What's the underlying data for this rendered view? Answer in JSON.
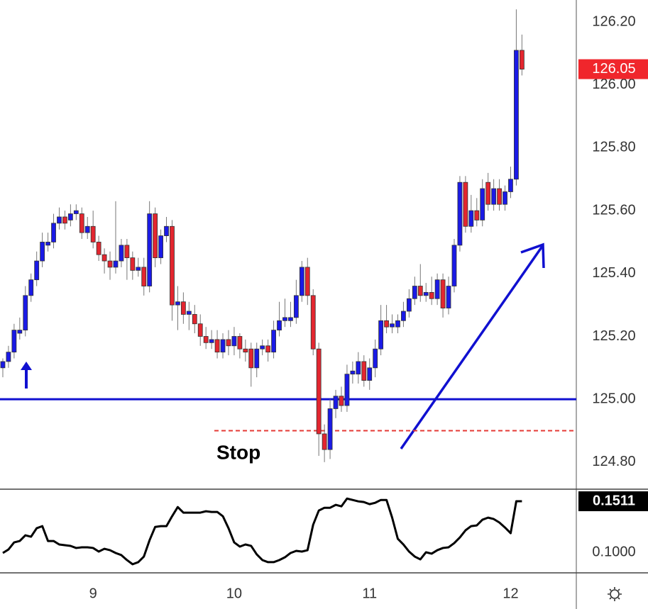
{
  "chart_data": [
    {
      "type": "candlestick",
      "categories": [
        null,
        null,
        null,
        null,
        null,
        null,
        null,
        null,
        null,
        null,
        null,
        null,
        null,
        null,
        null,
        null,
        "9",
        null,
        null,
        null,
        null,
        null,
        null,
        null,
        null,
        null,
        null,
        null,
        null,
        null,
        null,
        null,
        null,
        null,
        null,
        null,
        null,
        null,
        null,
        null,
        null,
        "10",
        null,
        null,
        null,
        null,
        null,
        null,
        null,
        null,
        null,
        null,
        null,
        null,
        null,
        null,
        null,
        null,
        null,
        null,
        null,
        null,
        null,
        null,
        null,
        "11",
        null,
        null,
        null,
        null,
        null,
        null,
        null,
        null,
        null,
        null,
        null,
        null,
        null,
        null,
        null,
        null,
        null,
        null,
        null,
        null,
        null,
        null,
        null,
        null,
        "12",
        null,
        null
      ],
      "open": [
        125.1,
        125.12,
        125.15,
        125.21,
        125.22,
        125.33,
        125.38,
        125.44,
        125.49,
        125.5,
        125.56,
        125.58,
        125.57,
        125.59,
        125.59,
        125.53,
        125.55,
        125.5,
        125.46,
        125.44,
        125.42,
        125.44,
        125.49,
        125.45,
        125.41,
        125.42,
        125.36,
        125.59,
        125.45,
        125.52,
        125.55,
        125.3,
        125.31,
        125.27,
        125.27,
        125.24,
        125.2,
        125.18,
        125.19,
        125.15,
        125.19,
        125.17,
        125.2,
        125.16,
        125.16,
        125.1,
        125.16,
        125.17,
        125.15,
        125.22,
        125.25,
        125.25,
        125.26,
        125.33,
        125.42,
        125.33,
        125.16,
        124.89,
        124.84,
        124.97,
        125.01,
        124.98,
        125.08,
        125.08,
        125.12,
        125.06,
        125.1,
        125.16,
        125.25,
        125.23,
        125.23,
        125.25,
        125.28,
        125.32,
        125.36,
        125.33,
        125.34,
        125.32,
        125.38,
        125.29,
        125.36,
        125.49,
        125.69,
        125.55,
        125.6,
        125.57,
        125.69,
        125.62,
        125.67,
        125.62,
        125.66,
        125.7,
        126.11
      ],
      "high": [
        125.13,
        125.17,
        125.24,
        125.26,
        125.36,
        125.4,
        125.47,
        125.53,
        125.53,
        125.59,
        125.61,
        125.6,
        125.62,
        125.62,
        125.61,
        125.58,
        125.6,
        125.52,
        125.48,
        125.47,
        125.63,
        125.51,
        125.51,
        125.47,
        125.45,
        125.45,
        125.63,
        125.61,
        125.54,
        125.58,
        125.57,
        125.36,
        125.34,
        125.31,
        125.3,
        125.27,
        125.23,
        125.22,
        125.22,
        125.21,
        125.22,
        125.23,
        125.21,
        125.19,
        125.18,
        125.18,
        125.19,
        125.19,
        125.25,
        125.31,
        125.32,
        125.31,
        125.38,
        125.44,
        125.45,
        125.35,
        125.18,
        124.92,
        125.0,
        125.03,
        125.04,
        125.11,
        125.12,
        125.15,
        125.14,
        125.13,
        125.19,
        125.3,
        125.3,
        125.27,
        125.27,
        125.31,
        125.35,
        125.39,
        125.43,
        125.37,
        125.39,
        125.4,
        125.4,
        125.39,
        125.51,
        125.71,
        125.71,
        125.65,
        125.64,
        125.7,
        125.72,
        125.7,
        125.7,
        125.68,
        125.74,
        126.24,
        126.16
      ],
      "low": [
        125.07,
        125.1,
        125.13,
        125.19,
        125.2,
        125.31,
        125.36,
        125.42,
        125.47,
        125.48,
        125.54,
        125.54,
        125.55,
        125.57,
        125.51,
        125.51,
        125.48,
        125.44,
        125.4,
        125.38,
        125.4,
        125.42,
        125.38,
        125.38,
        125.39,
        125.33,
        125.34,
        125.42,
        125.43,
        125.5,
        125.25,
        125.22,
        125.24,
        125.22,
        125.21,
        125.17,
        125.16,
        125.16,
        125.13,
        125.13,
        125.14,
        125.14,
        125.13,
        125.12,
        125.04,
        125.07,
        125.14,
        125.12,
        125.13,
        125.2,
        125.23,
        125.23,
        125.24,
        125.31,
        125.3,
        125.14,
        124.82,
        124.8,
        124.81,
        124.94,
        124.96,
        124.96,
        125.05,
        125.05,
        125.04,
        125.03,
        125.07,
        125.14,
        125.21,
        125.21,
        125.21,
        125.23,
        125.26,
        125.3,
        125.31,
        125.31,
        125.3,
        125.3,
        125.26,
        125.27,
        125.34,
        125.47,
        125.53,
        125.53,
        125.55,
        125.55,
        125.6,
        125.6,
        125.6,
        125.6,
        125.64,
        125.68,
        126.03
      ],
      "close": [
        125.12,
        125.15,
        125.22,
        125.22,
        125.33,
        125.38,
        125.44,
        125.5,
        125.5,
        125.56,
        125.58,
        125.56,
        125.59,
        125.6,
        125.53,
        125.55,
        125.5,
        125.46,
        125.44,
        125.42,
        125.44,
        125.49,
        125.45,
        125.41,
        125.42,
        125.36,
        125.59,
        125.45,
        125.52,
        125.55,
        125.3,
        125.31,
        125.27,
        125.28,
        125.24,
        125.2,
        125.18,
        125.19,
        125.15,
        125.19,
        125.17,
        125.2,
        125.16,
        125.15,
        125.1,
        125.16,
        125.17,
        125.15,
        125.22,
        125.25,
        125.26,
        125.26,
        125.33,
        125.42,
        125.33,
        125.16,
        124.89,
        124.84,
        124.97,
        125.01,
        124.98,
        125.08,
        125.09,
        125.12,
        125.06,
        125.1,
        125.16,
        125.25,
        125.23,
        125.24,
        125.25,
        125.28,
        125.32,
        125.36,
        125.33,
        125.34,
        125.32,
        125.38,
        125.29,
        125.36,
        125.49,
        125.69,
        125.55,
        125.6,
        125.57,
        125.67,
        125.62,
        125.67,
        125.62,
        125.66,
        125.7,
        126.11,
        126.05
      ],
      "up_color": "#1a1ae6",
      "down_color": "#e3262f",
      "price_label_color": "#f0262c",
      "ylim": [
        124.714,
        126.27
      ],
      "yticks": [
        {
          "value": 124.8,
          "label": "124.80"
        },
        {
          "value": 125.0,
          "label": "125.00"
        },
        {
          "value": 125.2,
          "label": "125.20"
        },
        {
          "value": 125.4,
          "label": "125.40"
        },
        {
          "value": 125.6,
          "label": "125.60"
        },
        {
          "value": 125.8,
          "label": "125.80"
        },
        {
          "value": 126.0,
          "label": "126.00"
        },
        {
          "value": 126.2,
          "label": "126.20"
        }
      ],
      "hline": {
        "value": 125.0,
        "color": "#1010d0"
      },
      "stop": {
        "label": "Stop",
        "value": 124.9,
        "color": "#e53935"
      }
    },
    {
      "type": "line",
      "series": [
        {
          "color": "#000000",
          "values": [
            0.0993,
            0.1028,
            0.1099,
            0.1113,
            0.117,
            0.1156,
            0.1241,
            0.1262,
            0.1113,
            0.1113,
            0.1078,
            0.1071,
            0.1064,
            0.1043,
            0.105,
            0.105,
            0.1043,
            0.1007,
            0.1035,
            0.1021,
            0.0993,
            0.0972,
            0.0922,
            0.088,
            0.0901,
            0.0957,
            0.112,
            0.1254,
            0.1262,
            0.1262,
            0.1361,
            0.1453,
            0.1397,
            0.1397,
            0.1397,
            0.1397,
            0.1411,
            0.1404,
            0.1404,
            0.1361,
            0.1241,
            0.1099,
            0.1057,
            0.1078,
            0.1064,
            0.0979,
            0.0922,
            0.0901,
            0.0901,
            0.0922,
            0.095,
            0.0993,
            0.1014,
            0.1007,
            0.1021,
            0.1276,
            0.1418,
            0.1446,
            0.1446,
            0.1475,
            0.146,
            0.1538,
            0.1524,
            0.151,
            0.1503,
            0.1482,
            0.1496,
            0.1524,
            0.1524,
            0.1347,
            0.1135,
            0.1078,
            0.1007,
            0.0957,
            0.0929,
            0.1,
            0.0986,
            0.1021,
            0.1043,
            0.105,
            0.1092,
            0.1149,
            0.122,
            0.1262,
            0.1269,
            0.1326,
            0.1347,
            0.1333,
            0.1298,
            0.1248,
            0.1191,
            0.1511,
            0.1511
          ]
        }
      ],
      "label_color": "#000000",
      "ylim": [
        0.0794,
        0.1632
      ],
      "yticks": [
        {
          "value": 0.1,
          "label": "0.1000"
        }
      ]
    }
  ]
}
